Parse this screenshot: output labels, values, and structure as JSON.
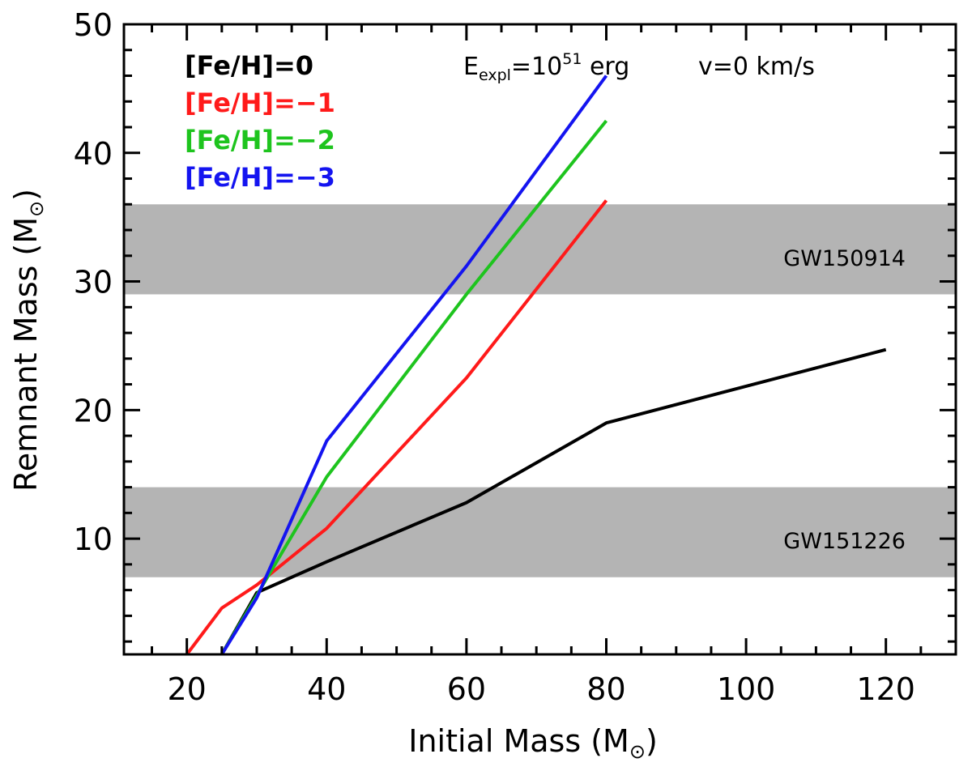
{
  "chart_data": {
    "type": "line",
    "title": "",
    "xlabel": "Initial Mass (M",
    "xlabel_sub": "⊙",
    "xlabel_close": ")",
    "ylabel": "Remnant Mass (M",
    "ylabel_sub": "⊙",
    "ylabel_close": ")",
    "xlim": [
      11,
      130
    ],
    "ylim": [
      1,
      50
    ],
    "xticks": [
      20,
      40,
      60,
      80,
      100,
      120
    ],
    "yticks": [
      10,
      20,
      30,
      40,
      50
    ],
    "x_minor_step": 5,
    "y_minor_step": 2,
    "grid": false,
    "legend_position": "top-left",
    "annotation": {
      "E_prefix": "E",
      "E_sub": "expl",
      "E_eq": "=10",
      "E_sup": "51",
      "E_unit": " erg",
      "velocity": "v=0 km/s"
    },
    "bands": [
      {
        "label": "GW150914",
        "y_range": [
          29,
          36
        ]
      },
      {
        "label": "GW151226",
        "y_range": [
          7,
          14
        ]
      }
    ],
    "band_color": "#b4b4b4",
    "series": [
      {
        "name": "[Fe/H]=0",
        "color": "#000000",
        "x": [
          25,
          30,
          40,
          60,
          80,
          120
        ],
        "y": [
          1,
          5.8,
          8.2,
          12.8,
          19.0,
          24.7
        ]
      },
      {
        "name": "[Fe/H]=−1",
        "color": "#ff1a1a",
        "x": [
          20,
          25,
          30,
          40,
          60,
          80
        ],
        "y": [
          1,
          4.6,
          6.4,
          10.8,
          22.5,
          36.3
        ]
      },
      {
        "name": "[Fe/H]=−2",
        "color": "#1ec41e",
        "x": [
          25,
          30,
          40,
          60,
          80
        ],
        "y": [
          1,
          5.6,
          14.8,
          29.0,
          42.5
        ]
      },
      {
        "name": "[Fe/H]=−3",
        "color": "#1414f0",
        "x": [
          25,
          30,
          40,
          60,
          80
        ],
        "y": [
          1,
          5.4,
          17.6,
          31.2,
          46.0
        ]
      }
    ]
  }
}
